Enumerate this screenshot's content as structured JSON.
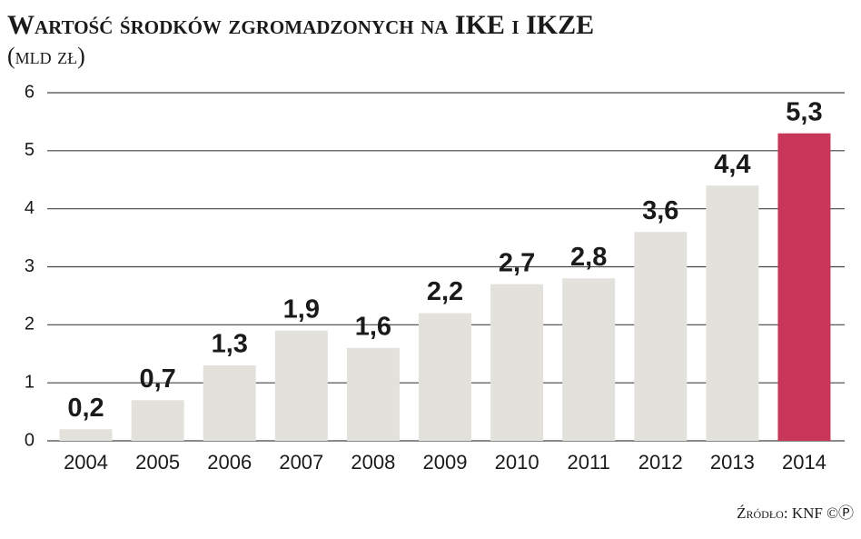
{
  "chart_data": {
    "type": "bar",
    "title": "Wartość środków zgromadzonych na IKE i IKZE",
    "subtitle": "(mld zł)",
    "source": "Źródło: KNF ©Ⓟ",
    "categories": [
      "2004",
      "2005",
      "2006",
      "2007",
      "2008",
      "2009",
      "2010",
      "2011",
      "2012",
      "2013",
      "2014"
    ],
    "values": [
      0.2,
      0.7,
      1.3,
      1.9,
      1.6,
      2.2,
      2.7,
      2.8,
      3.6,
      4.4,
      5.3
    ],
    "value_labels": [
      "0,2",
      "0,7",
      "1,3",
      "1,9",
      "1,6",
      "2,2",
      "2,7",
      "2,8",
      "3,6",
      "4,4",
      "5,3"
    ],
    "colors": [
      "#e2e1dc",
      "#e2e1dc",
      "#e2e1dc",
      "#e2e1dc",
      "#e2e1dc",
      "#e2e1dc",
      "#e2e1dc",
      "#e2e1dc",
      "#e2e1dc",
      "#e2e1dc",
      "#c8365a"
    ],
    "ylim": [
      0,
      6
    ],
    "yticks": [
      0,
      1,
      2,
      3,
      4,
      5,
      6
    ],
    "grid": true
  }
}
